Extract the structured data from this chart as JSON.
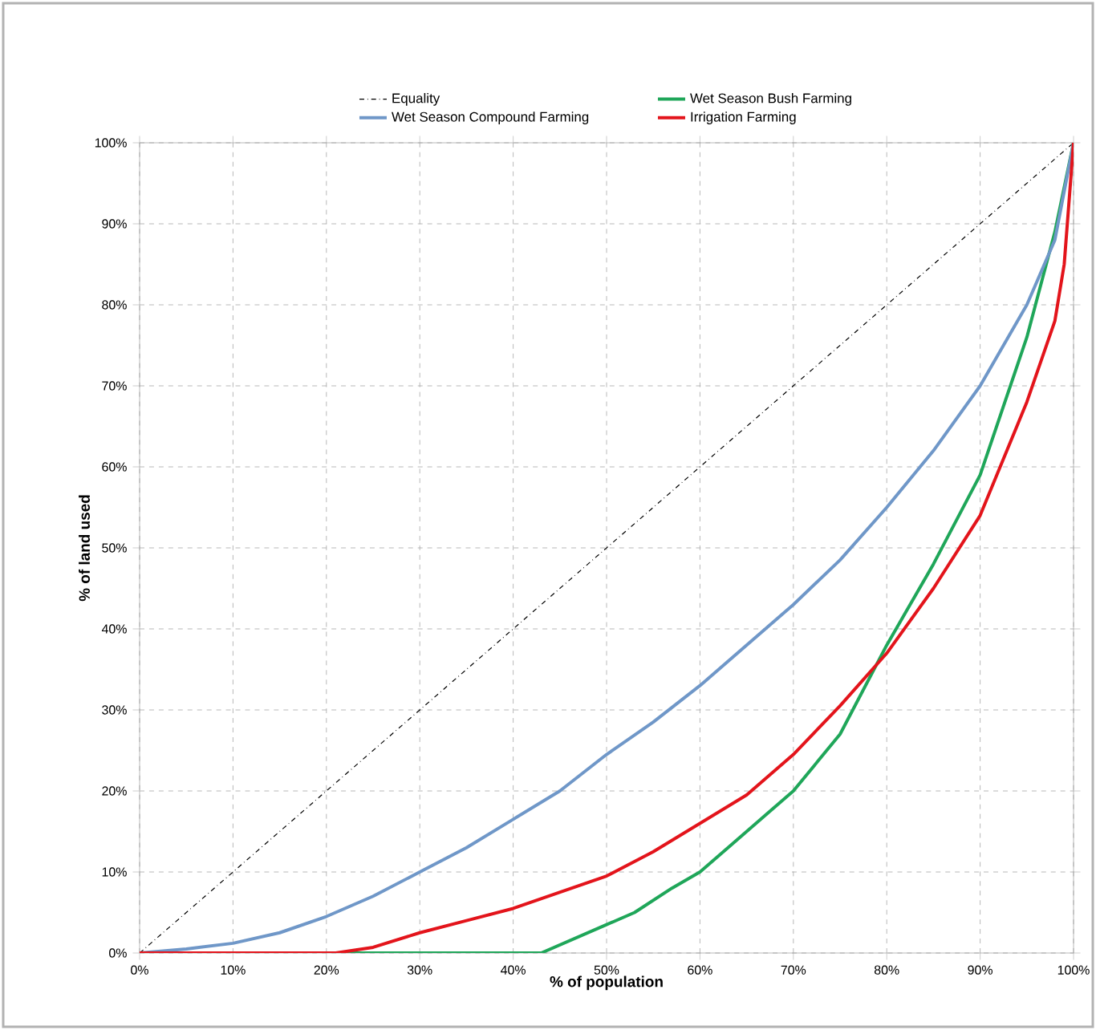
{
  "chart_data": {
    "type": "line",
    "xlabel": "% of population",
    "ylabel": "% of land used",
    "xlim": [
      0,
      100
    ],
    "ylim": [
      0,
      100
    ],
    "xticks": [
      {
        "value": 0,
        "label": "0%"
      },
      {
        "value": 10,
        "label": "10%"
      },
      {
        "value": 20,
        "label": "20%"
      },
      {
        "value": 30,
        "label": "30%"
      },
      {
        "value": 40,
        "label": "40%"
      },
      {
        "value": 50,
        "label": "50%"
      },
      {
        "value": 60,
        "label": "60%"
      },
      {
        "value": 70,
        "label": "70%"
      },
      {
        "value": 80,
        "label": "80%"
      },
      {
        "value": 90,
        "label": "90%"
      },
      {
        "value": 100,
        "label": "100%"
      }
    ],
    "yticks": [
      {
        "value": 0,
        "label": "0%"
      },
      {
        "value": 10,
        "label": "10%"
      },
      {
        "value": 20,
        "label": "20%"
      },
      {
        "value": 30,
        "label": "30%"
      },
      {
        "value": 40,
        "label": "40%"
      },
      {
        "value": 50,
        "label": "50%"
      },
      {
        "value": 60,
        "label": "60%"
      },
      {
        "value": 70,
        "label": "70%"
      },
      {
        "value": 80,
        "label": "80%"
      },
      {
        "value": 90,
        "label": "90%"
      },
      {
        "value": 100,
        "label": "100%"
      }
    ],
    "grid": true,
    "legend": "top",
    "marker": "none",
    "series": [
      {
        "name": "Equality",
        "color": "#000000",
        "line_style": "dashdot",
        "x": [
          0,
          100
        ],
        "values": [
          0,
          100
        ]
      },
      {
        "name": "Wet Season Compound Farming",
        "color": "#6f97c8",
        "x": [
          0,
          5,
          10,
          15,
          20,
          25,
          30,
          35,
          40,
          45,
          50,
          55,
          60,
          65,
          70,
          75,
          80,
          85,
          90,
          95,
          98,
          100
        ],
        "values": [
          0,
          0.5,
          1.2,
          2.5,
          4.5,
          7,
          10,
          13,
          16.5,
          20,
          24.5,
          28.5,
          33,
          38,
          43,
          48.5,
          55,
          62,
          70,
          80,
          88,
          100
        ]
      },
      {
        "name": "Wet Season Bush Farming",
        "color": "#1fa659",
        "x": [
          0,
          41,
          43,
          50,
          53,
          57,
          60,
          63,
          67,
          70,
          75,
          80,
          85,
          90,
          95,
          98,
          100
        ],
        "values": [
          0,
          0,
          0,
          3.5,
          5,
          8,
          10,
          13,
          17,
          20,
          27,
          38,
          48,
          59,
          76,
          89,
          100
        ]
      },
      {
        "name": "Irrigation Farming",
        "color": "#e3141b",
        "x": [
          0,
          21,
          25,
          30,
          35,
          40,
          45,
          50,
          55,
          60,
          65,
          70,
          75,
          80,
          85,
          90,
          95,
          98,
          99,
          100
        ],
        "values": [
          0,
          0,
          0.7,
          2.5,
          4,
          5.5,
          7.5,
          9.5,
          12.5,
          16,
          19.5,
          24.5,
          30.5,
          37,
          45,
          54,
          68,
          78,
          85,
          100
        ]
      }
    ]
  }
}
